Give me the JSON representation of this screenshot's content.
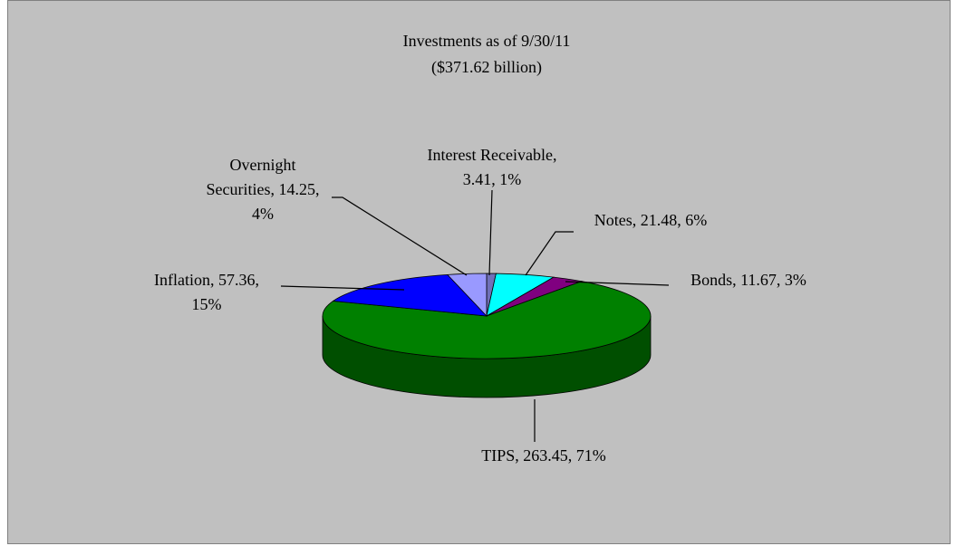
{
  "chart_data": {
    "type": "pie3d",
    "title": "Investments as of 9/30/11",
    "subtitle": "($371.62 billion)",
    "values": [
      3.41,
      21.48,
      11.67,
      263.45,
      57.36,
      14.25
    ],
    "value_labels": [
      "Interest Receivable,\n3.41, 1%",
      "Notes, 21.48, 6%",
      "Bonds, 11.67, 3%",
      "TIPS, 263.45, 71%",
      "Inflation, 57.36,\n15%",
      "Overnight\nSecurities, 14.25,\n4%"
    ],
    "colors": [
      "#7070b8",
      "#00ffff",
      "#800080",
      "#008000",
      "#0000ff",
      "#9999ff"
    ]
  }
}
